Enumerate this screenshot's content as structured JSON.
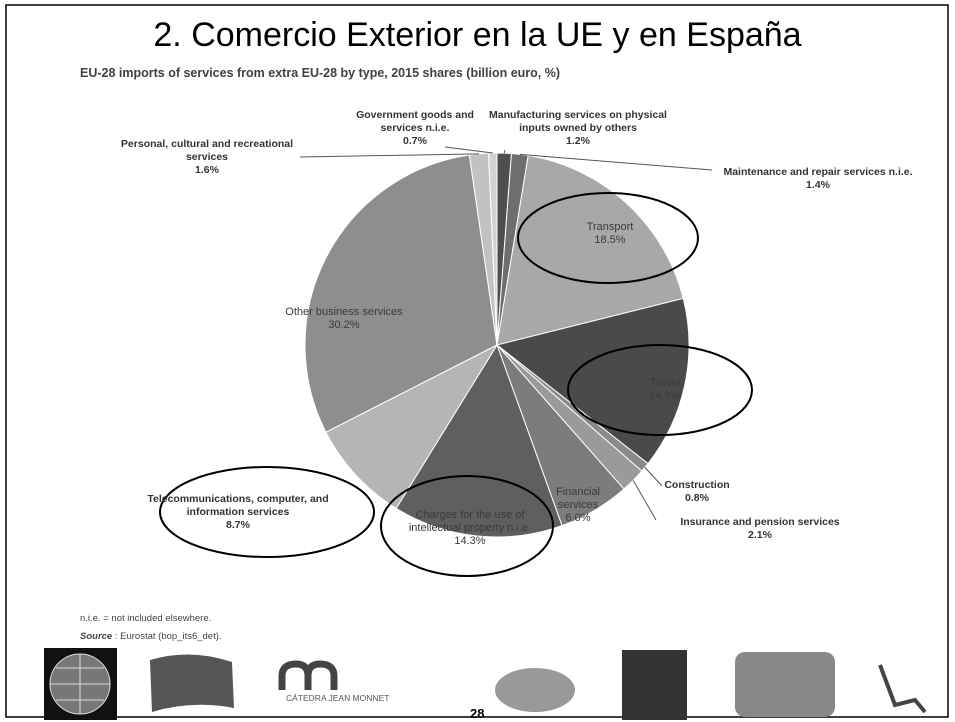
{
  "slide_title": "2. Comercio Exterior en la UE y en España",
  "chart_data": {
    "type": "pie",
    "subtitle": "EU-28 imports of services from extra EU-28 by type, 2015 shares (billion euro, %)",
    "categories": [
      "Manufacturing services on physical inputs owned by others",
      "Maintenance and repair services n.i.e.",
      "Transport",
      "Travel",
      "Construction",
      "Insurance and pension services",
      "Financial services",
      "Charges for the use of intellectual property n.i.e.",
      "Telecommunications, computer, and information services",
      "Other business services",
      "Personal, cultural and recreational services",
      "Government goods and services n.i.e."
    ],
    "values": [
      1.2,
      1.4,
      18.5,
      14.5,
      0.8,
      2.1,
      6.0,
      14.3,
      8.7,
      30.2,
      1.6,
      0.7
    ],
    "value_labels": [
      "1.2%",
      "1.4%",
      "18.5%",
      "14.5%",
      "0.8%",
      "2.1%",
      "6.0%",
      "14.3%",
      "8.7%",
      "30.2%",
      "1.6%",
      "0.7%"
    ],
    "colors": [
      "#4f4f4f",
      "#6e6e6e",
      "#a8a8a8",
      "#4a4a4a",
      "#8a8a8a",
      "#9a9a9a",
      "#7c7c7c",
      "#5f5f5f",
      "#b5b5b5",
      "#8e8e8e",
      "#c2c2c2",
      "#d2d2d2"
    ],
    "footnote": "n.i.e. = not included elsewhere.",
    "source_label": "Source",
    "source_text": " : Eurostat (bop_its6_det)."
  },
  "logo_text": "CÁTEDRA JEAN MONNET",
  "page_number": "28"
}
